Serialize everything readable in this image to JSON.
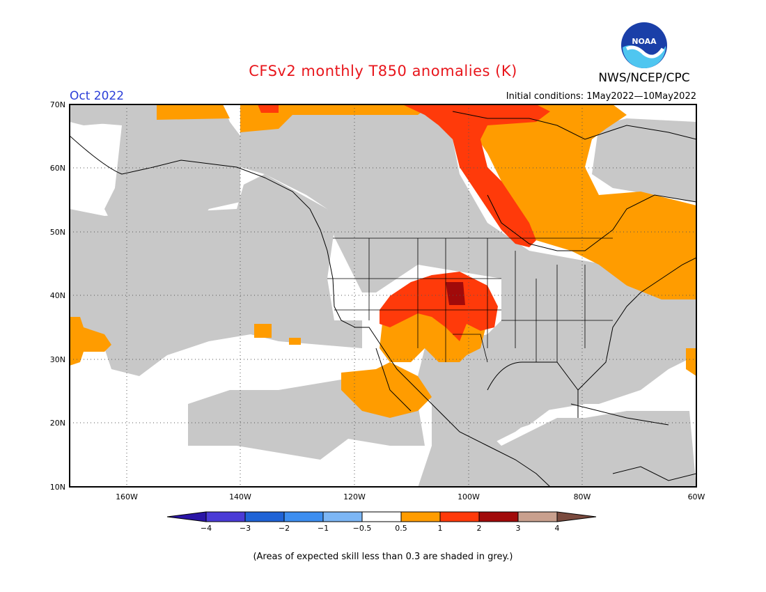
{
  "title": "CFSv2 monthly T850 anomalies (K)",
  "org_label": "NWS/NCEP/CPC",
  "logo_text": "NOAA",
  "valid_month": "Oct 2022",
  "initial_conditions": "Initial conditions: 1May2022—10May2022",
  "footnote": "(Areas of expected skill less than 0.3 are shaded in grey.)",
  "map": {
    "lat_ticks": [
      "70N",
      "60N",
      "50N",
      "40N",
      "30N",
      "20N",
      "10N"
    ],
    "lon_ticks": [
      "160W",
      "140W",
      "120W",
      "100W",
      "80W",
      "60W"
    ]
  },
  "colorbar": {
    "labels": [
      "−4",
      "−3",
      "−2",
      "−1",
      "−0.5",
      "0.5",
      "1",
      "2",
      "3",
      "4"
    ],
    "colors": [
      "#2a15a6",
      "#4a3bd6",
      "#1f63d6",
      "#3d8ef0",
      "#7cb6f5",
      "#ffffff",
      "#ff9c00",
      "#ff3a0a",
      "#a10a0a",
      "#c9a08e",
      "#7a4a3e"
    ]
  },
  "palette": {
    "grey": "#c8c8c8",
    "orange": "#ff9c00",
    "red": "#ff3a0a",
    "darkred": "#a10a0a"
  }
}
